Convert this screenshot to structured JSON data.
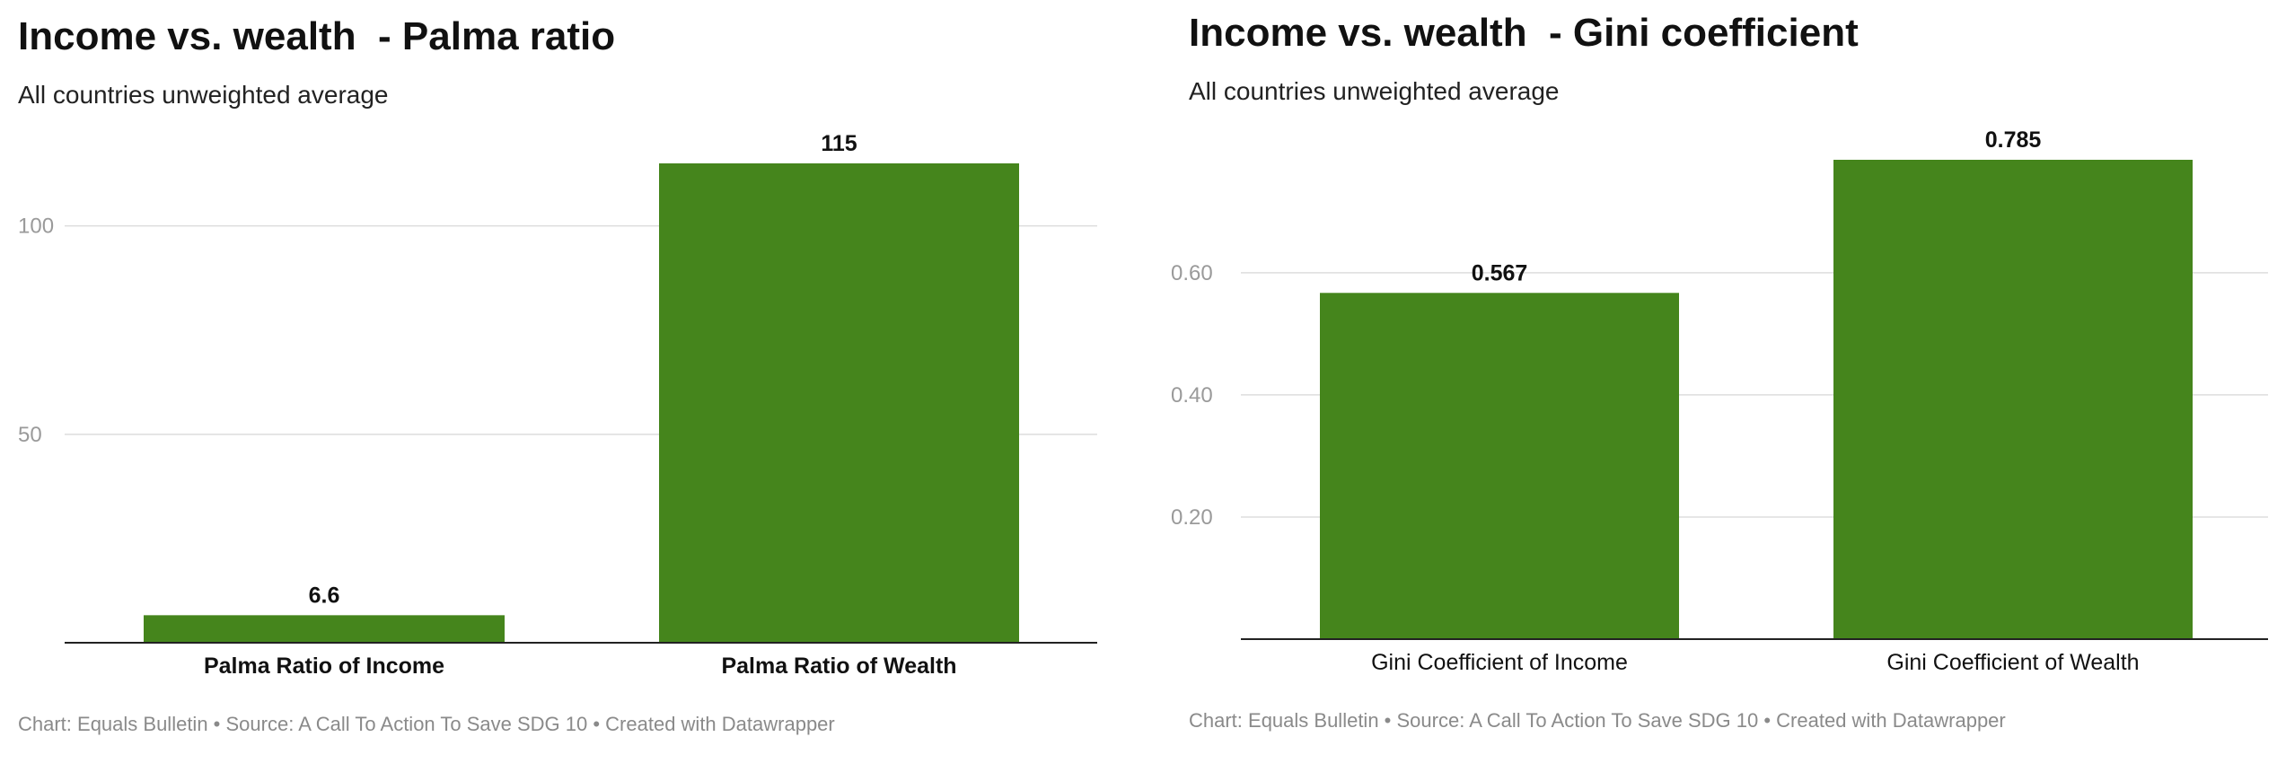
{
  "charts": [
    {
      "title": "Income vs. wealth  - Palma ratio",
      "subtitle": "All countries unweighted average",
      "footer": "Chart: Equals Bulletin  • Source: A Call To Action To Save SDG 10 • Created with Datawrapper"
    },
    {
      "title": "Income vs. wealth  - Gini coefficient",
      "subtitle": "All countries unweighted average",
      "footer": "Chart: Equals Bulletin • Source: A Call To Action To Save SDG 10 • Created with Datawrapper"
    }
  ],
  "chart_data": [
    {
      "type": "bar",
      "title": "Income vs. wealth  - Palma ratio",
      "subtitle": "All countries unweighted average",
      "categories": [
        "Palma Ratio of Income",
        "Palma Ratio of Wealth"
      ],
      "values": [
        6.6,
        115
      ],
      "value_labels": [
        "6.6",
        "115"
      ],
      "yticks": [
        50,
        100
      ],
      "ytick_labels": [
        "50",
        "100"
      ],
      "ylim": [
        0,
        115
      ],
      "bar_color": "#45851c",
      "category_labels_bold": true,
      "grid": true,
      "source": "Chart: Equals Bulletin  • Source: A Call To Action To Save SDG 10 • Created with Datawrapper"
    },
    {
      "type": "bar",
      "title": "Income vs. wealth  - Gini coefficient",
      "subtitle": "All countries unweighted average",
      "categories": [
        "Gini Coefficient of Income",
        "Gini Coefficient of Wealth"
      ],
      "values": [
        0.567,
        0.785
      ],
      "value_labels": [
        "0.567",
        "0.785"
      ],
      "yticks": [
        0.2,
        0.4,
        0.6
      ],
      "ytick_labels": [
        "0.20",
        "0.40",
        "0.60"
      ],
      "ylim": [
        0,
        0.785
      ],
      "bar_color": "#45851c",
      "category_labels_bold": false,
      "grid": true,
      "source": "Chart: Equals Bulletin • Source: A Call To Action To Save SDG 10 • Created with Datawrapper"
    }
  ]
}
